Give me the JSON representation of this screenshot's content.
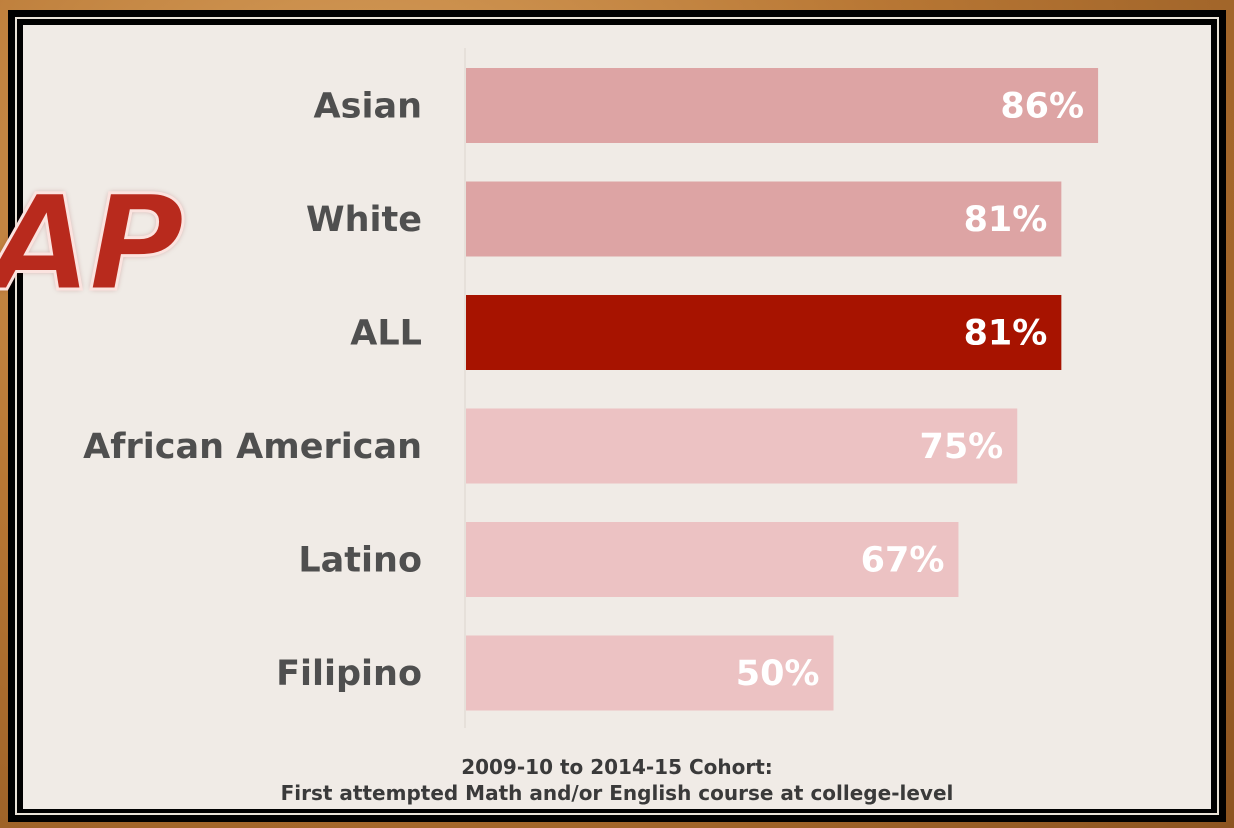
{
  "chart_data": {
    "type": "bar",
    "orientation": "horizontal",
    "categories": [
      "Asian",
      "White",
      "ALL",
      "African American",
      "Latino",
      "Filipino"
    ],
    "values": [
      86,
      81,
      81,
      75,
      67,
      50
    ],
    "value_labels": [
      "86%",
      "81%",
      "81%",
      "75%",
      "67%",
      "50%"
    ],
    "value_unit": "%",
    "xlim": [
      0,
      100
    ],
    "colors": [
      "#dda4a4",
      "#dda4a4",
      "#a71300",
      "#ecc2c3",
      "#ecc2c3",
      "#ecc2c3"
    ],
    "grid": false,
    "caption_line1": "2009-10 to 2014-15 Cohort:",
    "caption_line2": "First attempted Math and/or English course at college-level"
  },
  "logo": {
    "text": "AP",
    "color": "#b82a1d"
  }
}
